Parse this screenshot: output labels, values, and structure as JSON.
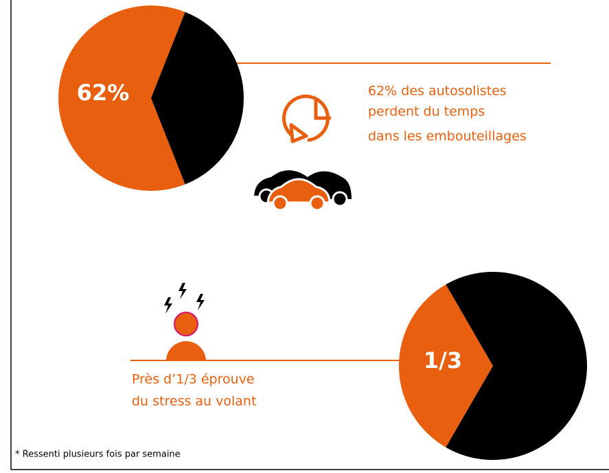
{
  "chart_data": [
    {
      "type": "pie",
      "values": [
        62,
        38
      ],
      "value_labels": [
        "62%",
        null
      ],
      "colors": [
        "#e8600f",
        "#000000"
      ]
    },
    {
      "type": "pie",
      "values": [
        33.3,
        66.7
      ],
      "value_labels": [
        "1/3",
        null
      ],
      "colors": [
        "#e8600f",
        "#000000"
      ]
    }
  ],
  "captions": [
    [
      "62% des autosolistes",
      "perdent du temps",
      "dans les embouteillages"
    ],
    [
      "Près d’1/3 éprouve",
      "du stress au volant"
    ]
  ],
  "footnote": "* Ressenti plusieurs fois par semaine"
}
